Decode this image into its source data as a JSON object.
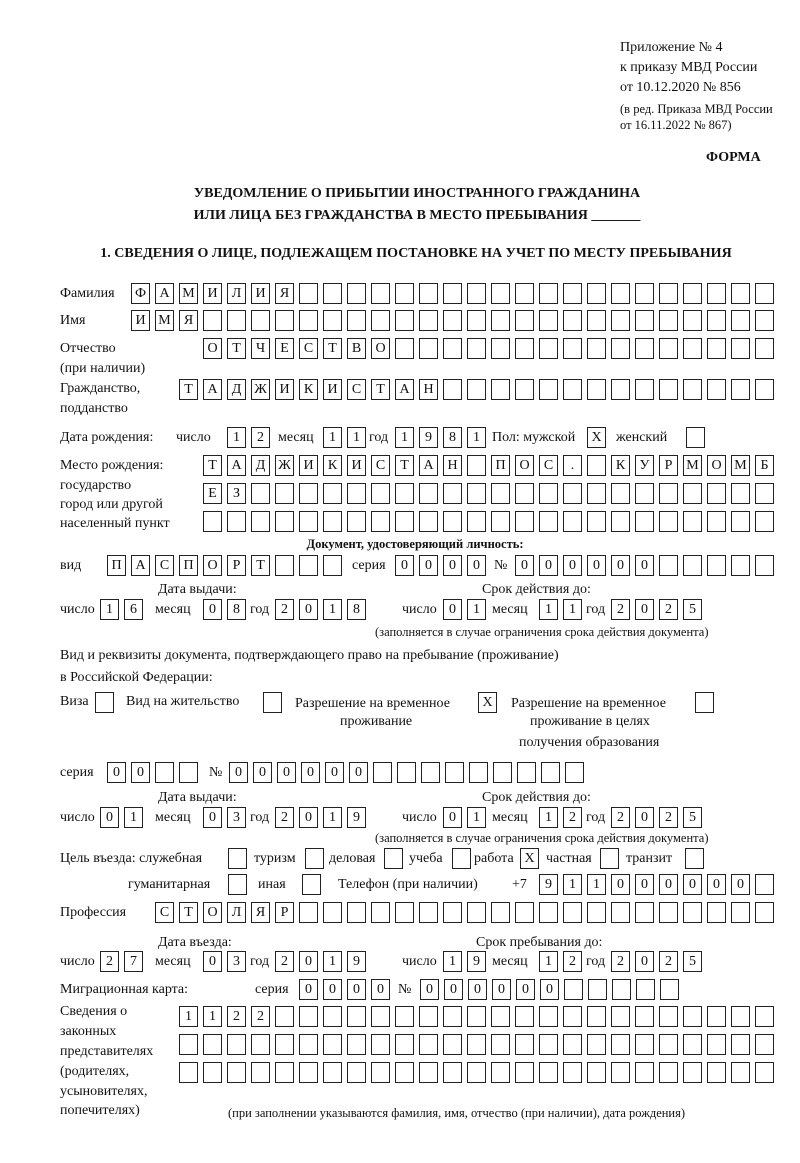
{
  "header": {
    "appendix_line1": "Приложение № 4",
    "appendix_line2": "к приказу МВД России",
    "appendix_line3": "от 10.12.2020 № 856",
    "amend_line1": "(в ред. Приказа МВД России",
    "amend_line2": "от 16.11.2022 № 867)",
    "form_label": "ФОРМА",
    "title_line1": "УВЕДОМЛЕНИЕ О ПРИБЫТИИ ИНОСТРАННОГО ГРАЖДАНИНА",
    "title_line2": "ИЛИ ЛИЦА БЕЗ ГРАЖДАНСТВА В МЕСТО ПРЕБЫВАНИЯ _______",
    "section1": "1. СВЕДЕНИЯ О ЛИЦЕ, ПОДЛЕЖАЩЕМ ПОСТАНОВКЕ НА УЧЕТ ПО МЕСТУ ПРЕБЫВАНИЯ"
  },
  "labels": {
    "surname": "Фамилия",
    "name": "Имя",
    "patronymic": "Отчество",
    "patronymic_note": "(при наличии)",
    "citizenship": "Гражданство,",
    "citizenship2": "подданство",
    "birth_date": "Дата рождения:",
    "day": "число",
    "month": "месяц",
    "year": "год",
    "sex": "Пол: мужской",
    "female": "женский",
    "birth_place": "Место рождения:",
    "state": "государство",
    "city": "город или другой",
    "locality": "населенный пункт",
    "id_doc": "Документ, удостоверяющий личность:",
    "kind": "вид",
    "series": "серия",
    "number": "№",
    "issue_date": "Дата выдачи:",
    "valid_until": "Срок действия до:",
    "validity_note": "(заполняется в случае ограничения срока действия документа)",
    "stay_doc1": "Вид и реквизиты документа, подтверждающего право на пребывание (проживание)",
    "stay_doc2": "в Российской Федерации:",
    "visa": "Виза",
    "residence_permit": "Вид на жительство",
    "temp_residence1": "Разрешение на временное",
    "temp_residence2": "проживание",
    "temp_edu1": "Разрешение на временное",
    "temp_edu2": "проживание в целях",
    "temp_edu3": "получения образования",
    "purpose": "Цель въезда: служебная",
    "tourism": "туризм",
    "business": "деловая",
    "study": "учеба",
    "work": "работа",
    "private": "частная",
    "transit": "транзит",
    "humanitarian": "гуманитарная",
    "other": "иная",
    "phone": "Телефон (при наличии)",
    "phone_prefix": "+7",
    "profession": "Профессия",
    "entry_date": "Дата въезда:",
    "stay_until": "Срок пребывания до:",
    "migration_card": "Миграционная карта:",
    "reps1": "Сведения о",
    "reps2": "законных",
    "reps3": "представителях",
    "reps4": "(родителях,",
    "reps5": "усыновителях,",
    "reps6": "попечителях)",
    "reps_note": "(при заполнении указываются фамилия, имя, отчество (при наличии), дата рождения)"
  },
  "fields": {
    "surname": "ФАМИЛИЯ",
    "name": "ИМЯ",
    "patronymic": "ОТЧЕСТВО",
    "citizenship": "ТАДЖИКИСТАН",
    "birth_day": "12",
    "birth_month": "11",
    "birth_year": "1981",
    "sex_male": "X",
    "sex_female": "",
    "birth_place_1": "ТАДЖИКИСТАН ПОС. КУРМОМБ",
    "birth_place_2": "ЕЗ",
    "birth_place_3": "",
    "doc_kind": "ПАСПОРТ",
    "doc_series": "0000",
    "doc_number": "000000",
    "doc_issue_day": "16",
    "doc_issue_month": "08",
    "doc_issue_year": "2018",
    "doc_valid_day": "01",
    "doc_valid_month": "11",
    "doc_valid_year": "2025",
    "visa": "",
    "residence_permit": "",
    "temp_residence": "X",
    "temp_edu": "",
    "stay_series": "00",
    "stay_number": "000000",
    "stay_issue_day": "01",
    "stay_issue_month": "03",
    "stay_issue_year": "2019",
    "stay_valid_day": "01",
    "stay_valid_month": "12",
    "stay_valid_year": "2025",
    "p_service": "",
    "p_tourism": "",
    "p_business": "",
    "p_study": "",
    "p_work": "X",
    "p_private": "",
    "p_transit": "",
    "p_humanitarian": "",
    "p_other": "",
    "phone": "911000000",
    "profession": "СТОЛЯР",
    "entry_day": "27",
    "entry_month": "03",
    "entry_year": "2019",
    "stay_day": "19",
    "stay_month": "12",
    "stay_year": "2025",
    "mig_series": "0000",
    "mig_number": "000000",
    "reps_1": "1122",
    "reps_2": "",
    "reps_3": ""
  }
}
